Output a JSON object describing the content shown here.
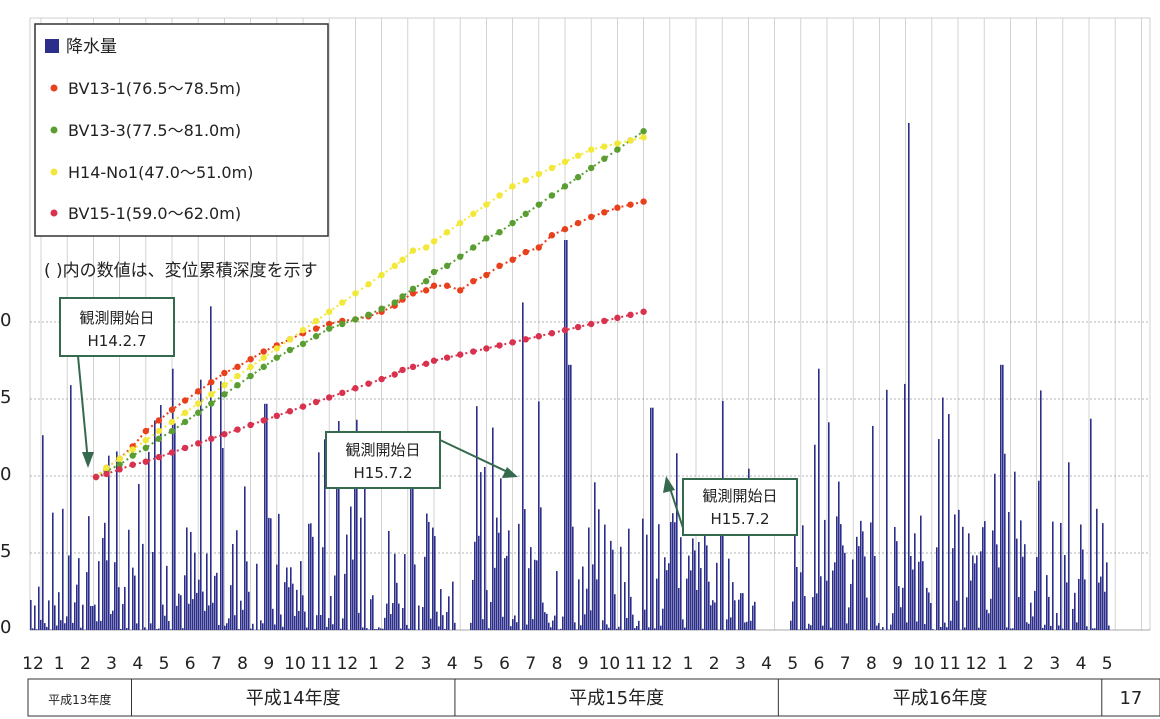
{
  "chart_data": {
    "type": "bar+line",
    "y_tick_labels": [
      "0",
      "5",
      "0",
      "5",
      "0"
    ],
    "month_labels": [
      "12",
      "1",
      "2",
      "3",
      "4",
      "5",
      "6",
      "7",
      "8",
      "9",
      "10",
      "11",
      "12",
      "1",
      "2",
      "3",
      "4",
      "5",
      "6",
      "7",
      "8",
      "9",
      "10",
      "11",
      "12",
      "1",
      "2",
      "3",
      "4",
      "5",
      "6",
      "7",
      "8",
      "9",
      "10",
      "11",
      "12",
      "1",
      "2",
      "3",
      "4",
      "5"
    ],
    "fiscal_years": [
      {
        "label": "平成13年度",
        "from": 0,
        "to": 3.2
      },
      {
        "label": "平成14年度",
        "from": 3.2,
        "to": 13.2
      },
      {
        "label": "平成15年度",
        "from": 13.2,
        "to": 23.2
      },
      {
        "label": "平成16年度",
        "from": 23.2,
        "to": 33.2
      },
      {
        "label": "17",
        "from": 33.2,
        "to": 35
      }
    ],
    "legend": [
      {
        "name": "降水量",
        "marker": "square",
        "color": "#2b2f8a"
      },
      {
        "name": "BV13-1(76.5～78.5m)",
        "marker": "dot",
        "color": "#e8401c"
      },
      {
        "name": "BV13-3(77.5～81.0m)",
        "marker": "dot",
        "color": "#5a9e32"
      },
      {
        "name": "H14-No1(47.0～51.0m)",
        "marker": "dot",
        "color": "#f2e83a"
      },
      {
        "name": "BV15-1(59.0～62.0m)",
        "marker": "dot",
        "color": "#d8324e"
      }
    ],
    "note": "(  )内の数値は、変位累積深度を示す",
    "annotations": [
      {
        "line1": "観測開始日",
        "line2": "H14.2.7"
      },
      {
        "line1": "観測開始日",
        "line2": "H15.7.2"
      },
      {
        "line1": "観測開始日",
        "line2": "H15.7.2"
      }
    ],
    "series": [
      {
        "name": "BV13-1(76.5～78.5m)",
        "color": "#e8401c",
        "points": [
          [
            2.1,
            1.0
          ],
          [
            2.5,
            1.06
          ],
          [
            3.0,
            1.12
          ],
          [
            3.5,
            1.2
          ],
          [
            4.0,
            1.3
          ],
          [
            4.5,
            1.37
          ],
          [
            5.0,
            1.44
          ],
          [
            5.5,
            1.5
          ],
          [
            6.0,
            1.56
          ],
          [
            6.5,
            1.62
          ],
          [
            7.0,
            1.68
          ],
          [
            7.5,
            1.72
          ],
          [
            8.0,
            1.77
          ],
          [
            8.5,
            1.82
          ],
          [
            9.0,
            1.86
          ],
          [
            9.5,
            1.9
          ],
          [
            10.0,
            1.94
          ],
          [
            10.5,
            1.97
          ],
          [
            11.0,
            2.0
          ],
          [
            11.5,
            2.02
          ],
          [
            12.0,
            2.03
          ],
          [
            12.5,
            2.05
          ],
          [
            13.0,
            2.08
          ],
          [
            13.5,
            2.12
          ],
          [
            13.8,
            2.16
          ],
          [
            14.2,
            2.2
          ],
          [
            14.7,
            2.22
          ],
          [
            15.0,
            2.25
          ],
          [
            15.5,
            2.25
          ],
          [
            16.0,
            2.22
          ],
          [
            16.5,
            2.28
          ],
          [
            17.0,
            2.32
          ],
          [
            17.5,
            2.38
          ],
          [
            18.0,
            2.42
          ],
          [
            18.5,
            2.47
          ],
          [
            19.0,
            2.5
          ],
          [
            19.5,
            2.58
          ],
          [
            20.0,
            2.62
          ],
          [
            20.5,
            2.66
          ],
          [
            21.0,
            2.7
          ],
          [
            21.5,
            2.73
          ],
          [
            22.0,
            2.76
          ],
          [
            22.5,
            2.78
          ],
          [
            23.0,
            2.8
          ]
        ]
      },
      {
        "name": "BV13-3(77.5～81.0m)",
        "color": "#5a9e32",
        "points": [
          [
            2.1,
            1.0
          ],
          [
            2.5,
            1.04
          ],
          [
            3.0,
            1.08
          ],
          [
            3.5,
            1.14
          ],
          [
            4.0,
            1.19
          ],
          [
            4.5,
            1.25
          ],
          [
            5.0,
            1.3
          ],
          [
            5.5,
            1.36
          ],
          [
            6.0,
            1.42
          ],
          [
            6.5,
            1.48
          ],
          [
            7.0,
            1.54
          ],
          [
            7.5,
            1.6
          ],
          [
            8.0,
            1.66
          ],
          [
            8.5,
            1.72
          ],
          [
            9.0,
            1.78
          ],
          [
            9.5,
            1.83
          ],
          [
            10.0,
            1.87
          ],
          [
            10.5,
            1.92
          ],
          [
            11.0,
            1.97
          ],
          [
            11.5,
            2.0
          ],
          [
            12.0,
            2.03
          ],
          [
            12.5,
            2.06
          ],
          [
            13.0,
            2.1
          ],
          [
            13.5,
            2.14
          ],
          [
            13.8,
            2.18
          ],
          [
            14.2,
            2.23
          ],
          [
            14.7,
            2.28
          ],
          [
            15.0,
            2.34
          ],
          [
            15.5,
            2.38
          ],
          [
            16.0,
            2.44
          ],
          [
            16.5,
            2.5
          ],
          [
            17.0,
            2.56
          ],
          [
            17.5,
            2.6
          ],
          [
            18.0,
            2.66
          ],
          [
            18.5,
            2.72
          ],
          [
            19.0,
            2.78
          ],
          [
            19.5,
            2.84
          ],
          [
            20.0,
            2.9
          ],
          [
            20.5,
            2.96
          ],
          [
            21.0,
            3.02
          ],
          [
            21.5,
            3.08
          ],
          [
            22.0,
            3.14
          ],
          [
            22.5,
            3.2
          ],
          [
            23.0,
            3.26
          ]
        ]
      },
      {
        "name": "H14-No1(47.0～51.0m)",
        "color": "#f2e83a",
        "points": [
          [
            2.1,
            1.0
          ],
          [
            2.5,
            1.06
          ],
          [
            3.0,
            1.12
          ],
          [
            3.5,
            1.18
          ],
          [
            4.0,
            1.24
          ],
          [
            4.5,
            1.3
          ],
          [
            5.0,
            1.36
          ],
          [
            5.5,
            1.42
          ],
          [
            6.0,
            1.48
          ],
          [
            6.5,
            1.54
          ],
          [
            7.0,
            1.6
          ],
          [
            7.5,
            1.66
          ],
          [
            8.0,
            1.72
          ],
          [
            8.5,
            1.78
          ],
          [
            9.0,
            1.84
          ],
          [
            9.5,
            1.9
          ],
          [
            10.0,
            1.96
          ],
          [
            10.5,
            2.02
          ],
          [
            11.0,
            2.08
          ],
          [
            11.5,
            2.14
          ],
          [
            12.0,
            2.2
          ],
          [
            12.5,
            2.26
          ],
          [
            13.0,
            2.32
          ],
          [
            13.5,
            2.38
          ],
          [
            13.8,
            2.42
          ],
          [
            14.2,
            2.48
          ],
          [
            14.7,
            2.5
          ],
          [
            15.0,
            2.54
          ],
          [
            15.5,
            2.6
          ],
          [
            16.0,
            2.66
          ],
          [
            16.5,
            2.72
          ],
          [
            17.0,
            2.78
          ],
          [
            17.5,
            2.84
          ],
          [
            18.0,
            2.9
          ],
          [
            18.5,
            2.94
          ],
          [
            19.0,
            2.98
          ],
          [
            19.5,
            3.02
          ],
          [
            20.0,
            3.06
          ],
          [
            20.5,
            3.1
          ],
          [
            21.0,
            3.14
          ],
          [
            21.5,
            3.16
          ],
          [
            22.0,
            3.18
          ],
          [
            22.5,
            3.2
          ],
          [
            23.0,
            3.22
          ]
        ]
      },
      {
        "name": "BV15-1(59.0～62.0m)",
        "color": "#d8324e",
        "points": [
          [
            2.1,
            1.0
          ],
          [
            2.5,
            1.02
          ],
          [
            3.0,
            1.05
          ],
          [
            3.5,
            1.08
          ],
          [
            4.0,
            1.1
          ],
          [
            4.5,
            1.13
          ],
          [
            5.0,
            1.16
          ],
          [
            5.5,
            1.19
          ],
          [
            6.0,
            1.22
          ],
          [
            6.5,
            1.25
          ],
          [
            7.0,
            1.28
          ],
          [
            7.5,
            1.31
          ],
          [
            8.0,
            1.34
          ],
          [
            8.5,
            1.37
          ],
          [
            9.0,
            1.4
          ],
          [
            9.5,
            1.43
          ],
          [
            10.0,
            1.46
          ],
          [
            10.5,
            1.49
          ],
          [
            11.0,
            1.52
          ],
          [
            11.5,
            1.55
          ],
          [
            12.0,
            1.58
          ],
          [
            12.5,
            1.61
          ],
          [
            13.0,
            1.64
          ],
          [
            13.5,
            1.67
          ],
          [
            13.8,
            1.7
          ],
          [
            14.2,
            1.72
          ],
          [
            14.7,
            1.74
          ],
          [
            15.0,
            1.76
          ],
          [
            15.5,
            1.78
          ],
          [
            16.0,
            1.8
          ],
          [
            16.5,
            1.82
          ],
          [
            17.0,
            1.84
          ],
          [
            17.5,
            1.86
          ],
          [
            18.0,
            1.88
          ],
          [
            18.5,
            1.9
          ],
          [
            19.0,
            1.92
          ],
          [
            19.5,
            1.94
          ],
          [
            20.0,
            1.96
          ],
          [
            20.5,
            1.98
          ],
          [
            21.0,
            2.0
          ],
          [
            21.5,
            2.02
          ],
          [
            22.0,
            2.04
          ],
          [
            22.5,
            2.06
          ],
          [
            23.0,
            2.08
          ]
        ]
      }
    ]
  },
  "colors": {
    "bar": "#2b2f8a",
    "grid": "#c8c8c8",
    "annotation_fill": "#ffffff",
    "annotation_stroke": "#356a4e"
  }
}
